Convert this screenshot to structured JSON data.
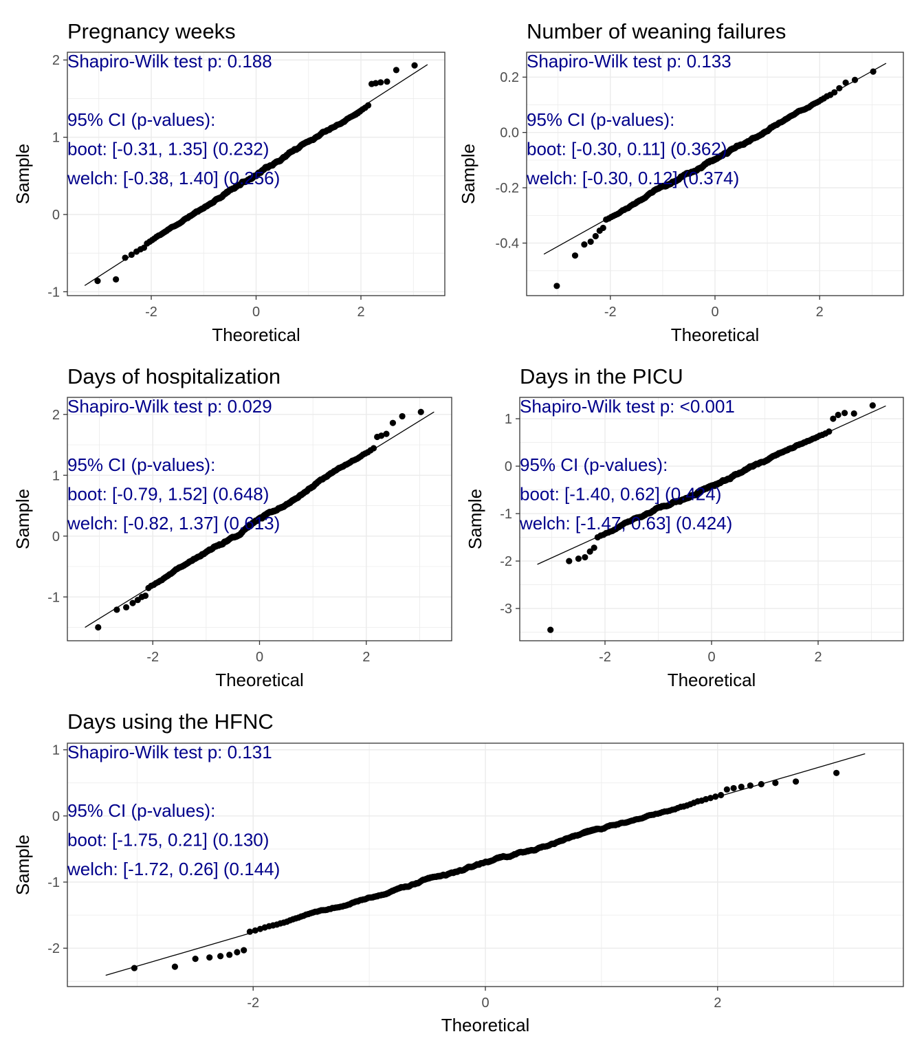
{
  "colors": {
    "annotation": "#00008b",
    "point": "#000000",
    "line": "#000000",
    "grid": "#ebebeb",
    "panel_border": "#333333",
    "tick_label": "#4d4d4d"
  },
  "chart_data": [
    {
      "type": "scatter",
      "title": "Pregnancy weeks",
      "xlabel": "Theoretical",
      "ylabel": "Sample",
      "xlim": [
        -3.6,
        3.6
      ],
      "ylim": [
        -1.05,
        2.1
      ],
      "xticks": [
        -2,
        0,
        2
      ],
      "yticks": [
        -1,
        0,
        1,
        2
      ],
      "xtick_labels": [
        "-2",
        "0",
        "2"
      ],
      "ytick_labels": [
        "-1",
        "0",
        "1",
        "2"
      ],
      "grid": true,
      "points": {
        "n": 400,
        "qqline": {
          "intercept": 0.52,
          "slope": 0.43
        },
        "seed": 11,
        "low_tail": [
          -0.86,
          -0.84,
          -0.56,
          -0.52,
          -0.48,
          -0.45,
          -0.43
        ],
        "high_tail": [
          1.69,
          1.7,
          1.71,
          1.72,
          1.87,
          1.93
        ]
      },
      "qq_line": {
        "x": [
          -3.27,
          3.27
        ],
        "y": [
          -0.92,
          1.94
        ]
      },
      "annotations": [
        "Shapiro-Wilk test p: 0.188",
        "",
        "95% CI (p-values):",
        "boot: [-0.31, 1.35] (0.232)",
        "welch: [-0.38, 1.40] (0.256)"
      ]
    },
    {
      "type": "scatter",
      "title": "Number of weaning failures",
      "xlabel": "Theoretical",
      "ylabel": "Sample",
      "xlim": [
        -3.6,
        3.6
      ],
      "ylim": [
        -0.59,
        0.29
      ],
      "xticks": [
        -2,
        0,
        2
      ],
      "yticks": [
        -0.4,
        -0.2,
        0.0,
        0.2
      ],
      "xtick_labels": [
        "-2",
        "0",
        "2"
      ],
      "ytick_labels": [
        "-0.4",
        "-0.2",
        "0.0",
        "0.2"
      ],
      "grid": true,
      "points": {
        "n": 400,
        "qqline": {
          "intercept": -0.095,
          "slope": 0.105
        },
        "seed": 23,
        "low_tail": [
          -0.555,
          -0.445,
          -0.405,
          -0.395,
          -0.375,
          -0.355,
          -0.345
        ],
        "high_tail": [
          0.16,
          0.18,
          0.19,
          0.22
        ]
      },
      "qq_line": {
        "x": [
          -3.27,
          3.27
        ],
        "y": [
          -0.44,
          0.25
        ]
      },
      "annotations": [
        "Shapiro-Wilk test p: 0.133",
        "",
        "95% CI (p-values):",
        "boot: [-0.30, 0.11] (0.362)",
        "welch: [-0.30, 0.12] (0.374)"
      ]
    },
    {
      "type": "scatter",
      "title": "Days of hospitalization",
      "xlabel": "Theoretical",
      "ylabel": "Sample",
      "xlim": [
        -3.6,
        3.6
      ],
      "ylim": [
        -1.72,
        2.28
      ],
      "xticks": [
        -2,
        0,
        2
      ],
      "yticks": [
        -1,
        0,
        1,
        2
      ],
      "xtick_labels": [
        "-2",
        "0",
        "2"
      ],
      "ytick_labels": [
        "-1",
        "0",
        "1",
        "2"
      ],
      "grid": true,
      "points": {
        "n": 400,
        "qqline": {
          "intercept": 0.27,
          "slope": 0.54
        },
        "seed": 37,
        "low_tail": [
          -1.5,
          -1.21,
          -1.17,
          -1.1,
          -1.05,
          -1.0,
          -0.98
        ],
        "high_tail": [
          1.63,
          1.65,
          1.68,
          1.86,
          1.97,
          2.04
        ]
      },
      "qq_line": {
        "x": [
          -3.27,
          3.27
        ],
        "y": [
          -1.5,
          2.04
        ]
      },
      "annotations": [
        "Shapiro-Wilk test p: 0.029",
        "",
        "95% CI (p-values):",
        "boot: [-0.79, 1.52] (0.648)",
        "welch: [-0.82, 1.37] (0.613)"
      ]
    },
    {
      "type": "scatter",
      "title": "Days in the PICU",
      "xlabel": "Theoretical",
      "ylabel": "Sample",
      "xlim": [
        -3.6,
        3.6
      ],
      "ylim": [
        -3.68,
        1.45
      ],
      "xticks": [
        -2,
        0,
        2
      ],
      "yticks": [
        -3,
        -2,
        -1,
        0,
        1
      ],
      "xtick_labels": [
        "-2",
        "0",
        "2"
      ],
      "ytick_labels": [
        "-3",
        "-2",
        "-1",
        "0",
        "1"
      ],
      "grid": true,
      "points": {
        "n": 400,
        "qqline": {
          "intercept": -0.4,
          "slope": 0.51
        },
        "seed": 53,
        "low_tail": [
          -3.45,
          -2.0,
          -1.95,
          -1.92,
          -1.8,
          -1.72
        ],
        "high_tail": [
          1.0,
          1.08,
          1.12,
          1.11,
          1.28
        ]
      },
      "qq_line": {
        "x": [
          -3.27,
          3.27
        ],
        "y": [
          -2.07,
          1.27
        ]
      },
      "annotations": [
        "Shapiro-Wilk test p: <0.001",
        "",
        "95% CI (p-values):",
        "boot: [-1.40, 0.62] (0.424)",
        "welch: [-1.47, 0.63] (0.424)"
      ]
    },
    {
      "type": "scatter",
      "title": "Days using the HFNC",
      "xlabel": "Theoretical",
      "ylabel": "Sample",
      "xlim": [
        -3.6,
        3.6
      ],
      "ylim": [
        -2.58,
        1.1
      ],
      "xticks": [
        -2,
        0,
        2
      ],
      "yticks": [
        -2,
        -1,
        0,
        1
      ],
      "xtick_labels": [
        "-2",
        "0",
        "2"
      ],
      "ytick_labels": [
        "-2",
        "-1",
        "0",
        "1"
      ],
      "grid": true,
      "points": {
        "n": 400,
        "qqline": {
          "intercept": -0.72,
          "slope": 0.51
        },
        "seed": 71,
        "low_tail": [
          -2.3,
          -2.28,
          -2.16,
          -2.14,
          -2.12,
          -2.1,
          -2.06,
          -2.03
        ],
        "high_tail": [
          0.4,
          0.42,
          0.44,
          0.46,
          0.48,
          0.5,
          0.52,
          0.65
        ]
      },
      "qq_line": {
        "x": [
          -3.27,
          3.27
        ],
        "y": [
          -2.41,
          0.94
        ]
      },
      "annotations": [
        "Shapiro-Wilk test p: 0.131",
        "",
        "95% CI (p-values):",
        "boot: [-1.75, 0.21] (0.130)",
        "welch: [-1.72, 0.26] (0.144)"
      ]
    }
  ]
}
